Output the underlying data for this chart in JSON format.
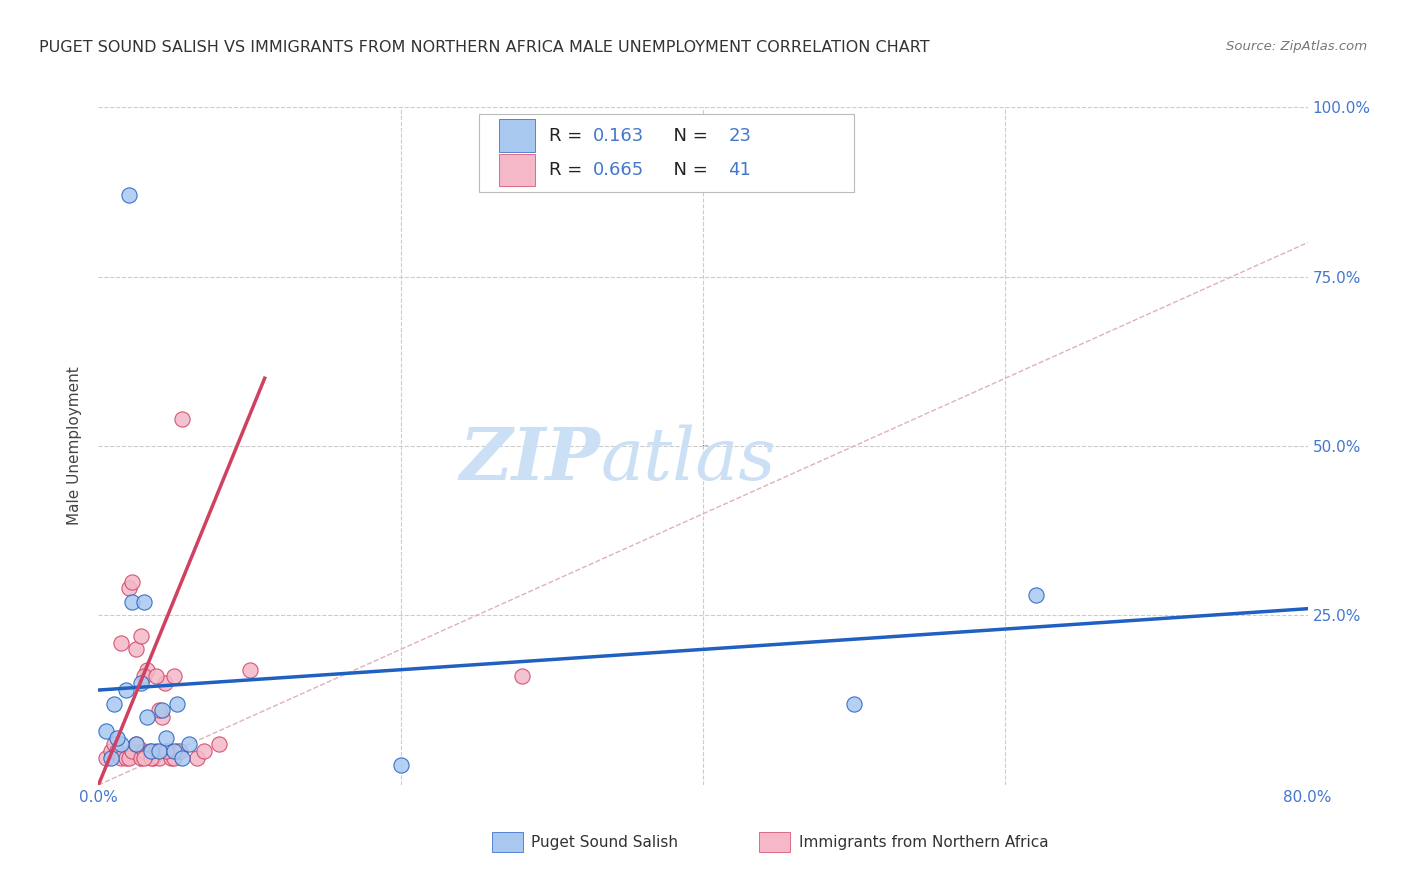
{
  "title": "PUGET SOUND SALISH VS IMMIGRANTS FROM NORTHERN AFRICA MALE UNEMPLOYMENT CORRELATION CHART",
  "source": "Source: ZipAtlas.com",
  "ylabel": "Male Unemployment",
  "xlim": [
    0.0,
    0.8
  ],
  "ylim": [
    0.0,
    1.0
  ],
  "legend1_label": "Puget Sound Salish",
  "legend2_label": "Immigrants from Northern Africa",
  "R1": "0.163",
  "N1": "23",
  "R2": "0.665",
  "N2": "41",
  "color_blue": "#a8c8f0",
  "color_pink": "#f4b8c8",
  "trendline_blue": "#2060c0",
  "trendline_pink": "#d04060",
  "diag_color": "#e0b0c0",
  "watermark_color": "#cce0f5",
  "background_color": "#ffffff",
  "grid_color": "#cccccc",
  "blue_scatter_x": [
    0.02,
    0.025,
    0.01,
    0.005,
    0.008,
    0.015,
    0.018,
    0.012,
    0.022,
    0.028,
    0.035,
    0.04,
    0.045,
    0.05,
    0.055,
    0.03,
    0.032,
    0.042,
    0.052,
    0.06,
    0.5,
    0.62,
    0.2
  ],
  "blue_scatter_y": [
    0.87,
    0.06,
    0.12,
    0.08,
    0.04,
    0.06,
    0.14,
    0.07,
    0.27,
    0.15,
    0.05,
    0.05,
    0.07,
    0.05,
    0.04,
    0.27,
    0.1,
    0.11,
    0.12,
    0.06,
    0.12,
    0.28,
    0.03
  ],
  "pink_scatter_x": [
    0.005,
    0.008,
    0.01,
    0.012,
    0.015,
    0.018,
    0.02,
    0.022,
    0.025,
    0.028,
    0.03,
    0.032,
    0.034,
    0.036,
    0.038,
    0.04,
    0.042,
    0.044,
    0.046,
    0.048,
    0.05,
    0.052,
    0.054,
    0.02,
    0.025,
    0.015,
    0.03,
    0.035,
    0.04,
    0.045,
    0.05,
    0.022,
    0.028,
    0.038,
    0.055,
    0.1,
    0.065,
    0.07,
    0.08,
    0.03,
    0.28
  ],
  "pink_scatter_y": [
    0.04,
    0.05,
    0.06,
    0.05,
    0.04,
    0.04,
    0.04,
    0.05,
    0.06,
    0.04,
    0.05,
    0.17,
    0.05,
    0.04,
    0.05,
    0.04,
    0.1,
    0.15,
    0.05,
    0.04,
    0.04,
    0.05,
    0.05,
    0.29,
    0.2,
    0.21,
    0.16,
    0.04,
    0.11,
    0.05,
    0.16,
    0.3,
    0.22,
    0.16,
    0.54,
    0.17,
    0.04,
    0.05,
    0.06,
    0.04,
    0.16
  ],
  "blue_trend_x": [
    0.0,
    0.8
  ],
  "blue_trend_y": [
    0.14,
    0.26
  ],
  "pink_trend_x": [
    0.0,
    0.11
  ],
  "pink_trend_y": [
    0.0,
    0.6
  ]
}
